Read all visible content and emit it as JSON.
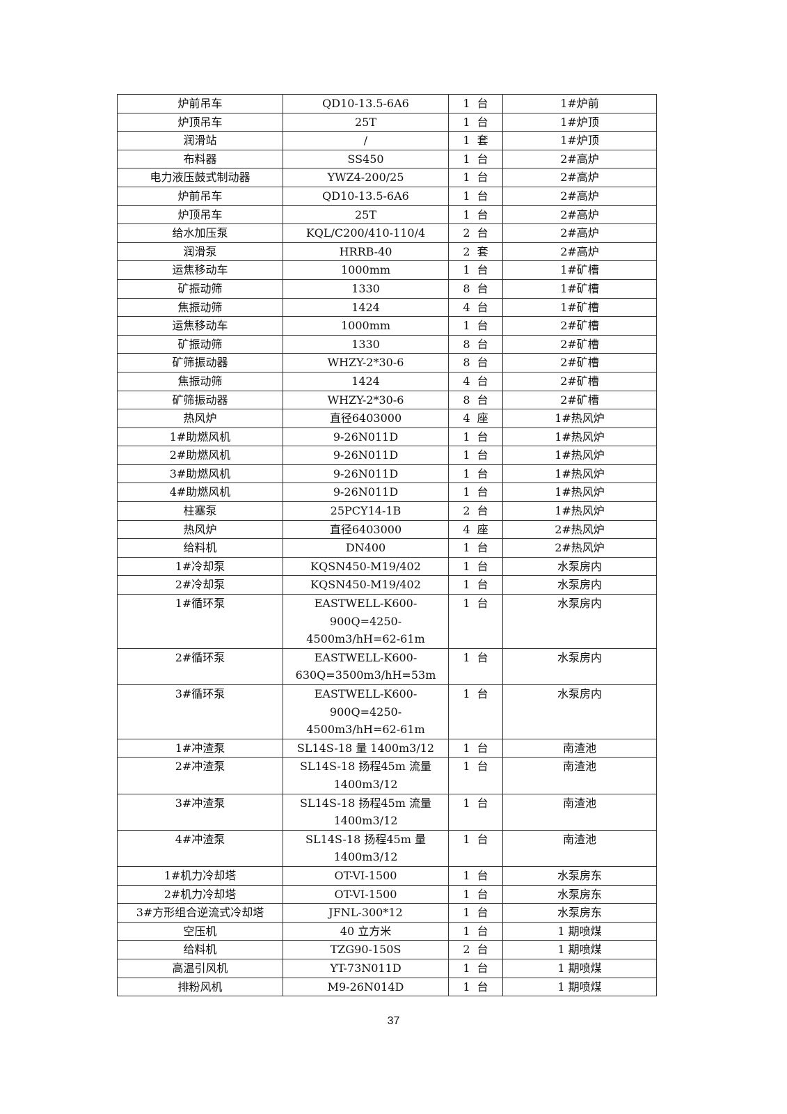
{
  "table": {
    "rows": [
      [
        "炉前吊车",
        "QD10-13.5-6A6",
        "1  台",
        "1#炉前"
      ],
      [
        "炉顶吊车",
        "25T",
        "1  台",
        "1#炉顶"
      ],
      [
        "润滑站",
        "/",
        "1  套",
        "1#炉顶"
      ],
      [
        "布料器",
        "SS450",
        "1  台",
        "2#高炉"
      ],
      [
        "电力液压鼓式制动器",
        "YWZ4-200/25",
        "1  台",
        "2#高炉"
      ],
      [
        "炉前吊车",
        "QD10-13.5-6A6",
        "1  台",
        "2#高炉"
      ],
      [
        "炉顶吊车",
        "25T",
        "1  台",
        "2#高炉"
      ],
      [
        "给水加压泵",
        "KQL/C200/410-110/4",
        "2  台",
        "2#高炉"
      ],
      [
        "润滑泵",
        "HRRB-40",
        "2  套",
        "2#高炉"
      ],
      [
        "运焦移动车",
        "1000mm",
        "1  台",
        "1#矿槽"
      ],
      [
        "矿振动筛",
        "1330",
        "8  台",
        "1#矿槽"
      ],
      [
        "焦振动筛",
        "1424",
        "4  台",
        "1#矿槽"
      ],
      [
        "运焦移动车",
        "1000mm",
        "1  台",
        "2#矿槽"
      ],
      [
        "矿振动筛",
        "1330",
        "8  台",
        "2#矿槽"
      ],
      [
        "矿筛振动器",
        "WHZY-2*30-6",
        "8  台",
        "2#矿槽"
      ],
      [
        "焦振动筛",
        "1424",
        "4  台",
        "2#矿槽"
      ],
      [
        "矿筛振动器",
        "WHZY-2*30-6",
        "8  台",
        "2#矿槽"
      ],
      [
        "热风炉",
        "直径6403000",
        "4  座",
        "1#热风炉"
      ],
      [
        "1#助燃风机",
        "9-26N011D",
        "1  台",
        "1#热风炉"
      ],
      [
        "2#助燃风机",
        "9-26N011D",
        "1  台",
        "1#热风炉"
      ],
      [
        "3#助燃风机",
        "9-26N011D",
        "1  台",
        "1#热风炉"
      ],
      [
        "4#助燃风机",
        "9-26N011D",
        "1  台",
        "1#热风炉"
      ],
      [
        "柱塞泵",
        "25PCY14-1B",
        "2  台",
        "1#热风炉"
      ],
      [
        "热风炉",
        "直径6403000",
        "4  座",
        "2#热风炉"
      ],
      [
        "给料机",
        "DN400",
        "1  台",
        "2#热风炉"
      ],
      [
        "1#冷却泵",
        "KQSN450-M19/402",
        "1  台",
        "水泵房内"
      ],
      [
        "2#冷却泵",
        "KQSN450-M19/402",
        "1  台",
        "水泵房内"
      ],
      [
        "1#循环泵",
        "EASTWELL-K600-\n900Q=4250-\n4500m3/hH=62-61m",
        "1  台",
        "水泵房内"
      ],
      [
        "2#循环泵",
        "EASTWELL-K600-\n630Q=3500m3/hH=53m",
        "1  台",
        "水泵房内"
      ],
      [
        "3#循环泵",
        "EASTWELL-K600-\n900Q=4250-\n4500m3/hH=62-61m",
        "1  台",
        "水泵房内"
      ],
      [
        "1#冲渣泵",
        "SL14S-18 量 1400m3/12",
        "1  台",
        "南渣池"
      ],
      [
        "2#冲渣泵",
        "SL14S-18  扬程45m 流量\n1400m3/12",
        "1  台",
        "南渣池"
      ],
      [
        "3#冲渣泵",
        "SL14S-18  扬程45m 流量\n1400m3/12",
        "1  台",
        "南渣池"
      ],
      [
        "4#冲渣泵",
        "SL14S-18  扬程45m  量\n1400m3/12",
        "1  台",
        "南渣池"
      ],
      [
        "1#机力冷却塔",
        "OT-VI-1500",
        "1  台",
        "水泵房东"
      ],
      [
        "2#机力冷却塔",
        "OT-VI-1500",
        "1  台",
        "水泵房东"
      ],
      [
        "3#方形组合逆流式冷却塔",
        "JFNL-300*12",
        "1  台",
        "水泵房东"
      ],
      [
        "空压机",
        "40  立方米",
        "1  台",
        "1  期喷煤"
      ],
      [
        "给料机",
        "TZG90-150S",
        "2  台",
        "1  期喷煤"
      ],
      [
        "高温引风机",
        "YT-73N011D",
        "1  台",
        "1  期喷煤"
      ],
      [
        "排粉风机",
        "M9-26N014D",
        "1  台",
        "1  期喷煤"
      ]
    ]
  },
  "page_number": "37"
}
